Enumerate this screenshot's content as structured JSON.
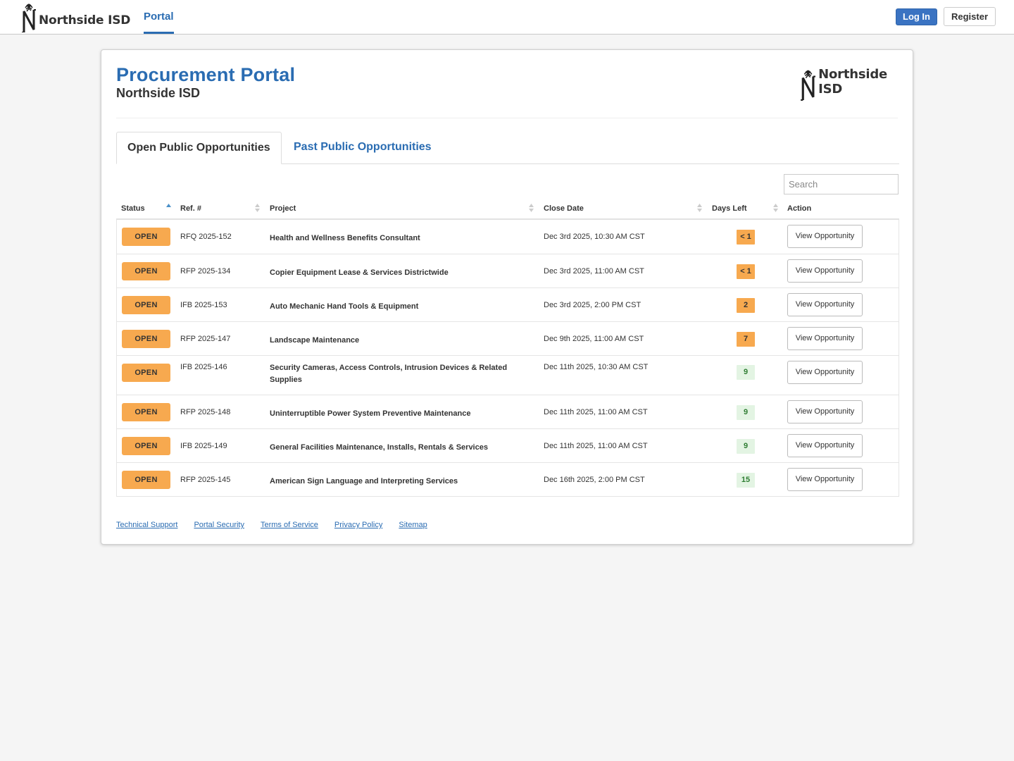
{
  "header": {
    "brand_text": "Northside ISD",
    "nav_portal": "Portal",
    "login_label": "Log In",
    "register_label": "Register"
  },
  "portal": {
    "title": "Procurement Portal",
    "subtitle": "Northside ISD",
    "logo_text": "Northside ISD"
  },
  "tabs": {
    "open": "Open Public Opportunities",
    "past": "Past Public Opportunities"
  },
  "search": {
    "placeholder": "Search"
  },
  "table": {
    "columns": [
      "Status",
      "Ref. #",
      "Project",
      "Close Date",
      "Days Left",
      "Action"
    ],
    "rows": [
      {
        "status": "OPEN",
        "ref": "RFQ 2025-152",
        "project": "Health and Wellness Benefits Consultant",
        "close": "Dec 3rd 2025, 10:30 AM CST",
        "days": "< 1",
        "days_level": "warn",
        "action": "View Opportunity"
      },
      {
        "status": "OPEN",
        "ref": "RFP 2025-134",
        "project": "Copier Equipment Lease & Services Districtwide",
        "close": "Dec 3rd 2025, 11:00 AM CST",
        "days": "< 1",
        "days_level": "warn",
        "action": "View Opportunity"
      },
      {
        "status": "OPEN",
        "ref": "IFB 2025-153",
        "project": "Auto Mechanic Hand Tools & Equipment",
        "close": "Dec 3rd 2025, 2:00 PM CST",
        "days": "2",
        "days_level": "warn",
        "action": "View Opportunity"
      },
      {
        "status": "OPEN",
        "ref": "RFP 2025-147",
        "project": "Landscape Maintenance",
        "close": "Dec 9th 2025, 11:00 AM CST",
        "days": "7",
        "days_level": "warn",
        "action": "View Opportunity"
      },
      {
        "status": "OPEN",
        "ref": "IFB 2025-146",
        "project": "Security Cameras, Access Controls, Intrusion Devices & Related Supplies",
        "close": "Dec 11th 2025, 10:30 AM CST",
        "days": "9",
        "days_level": "ok",
        "action": "View Opportunity"
      },
      {
        "status": "OPEN",
        "ref": "RFP 2025-148",
        "project": "Uninterruptible Power System Preventive Maintenance",
        "close": "Dec 11th 2025, 11:00 AM CST",
        "days": "9",
        "days_level": "ok",
        "action": "View Opportunity"
      },
      {
        "status": "OPEN",
        "ref": "IFB 2025-149",
        "project": "General Facilities Maintenance, Installs, Rentals & Services",
        "close": "Dec 11th 2025, 11:00 AM CST",
        "days": "9",
        "days_level": "ok",
        "action": "View Opportunity"
      },
      {
        "status": "OPEN",
        "ref": "RFP 2025-145",
        "project": "American Sign Language and Interpreting Services",
        "close": "Dec 16th 2025, 2:00 PM CST",
        "days": "15",
        "days_level": "ok",
        "action": "View Opportunity"
      }
    ]
  },
  "footer": {
    "links": [
      "Technical Support",
      "Portal Security",
      "Terms of Service",
      "Privacy Policy",
      "Sitemap"
    ]
  },
  "colors": {
    "brand_blue": "#2a6cb2",
    "login_blue": "#3a73c2",
    "open_orange": "#f7a94f",
    "ok_green_bg": "#e3f4e3",
    "ok_green_text": "#2e7d32"
  },
  "icons": {
    "logo": "northside-isd-logo-icon",
    "sort_asc": "sort-asc-icon",
    "sort_both": "sort-icon"
  }
}
